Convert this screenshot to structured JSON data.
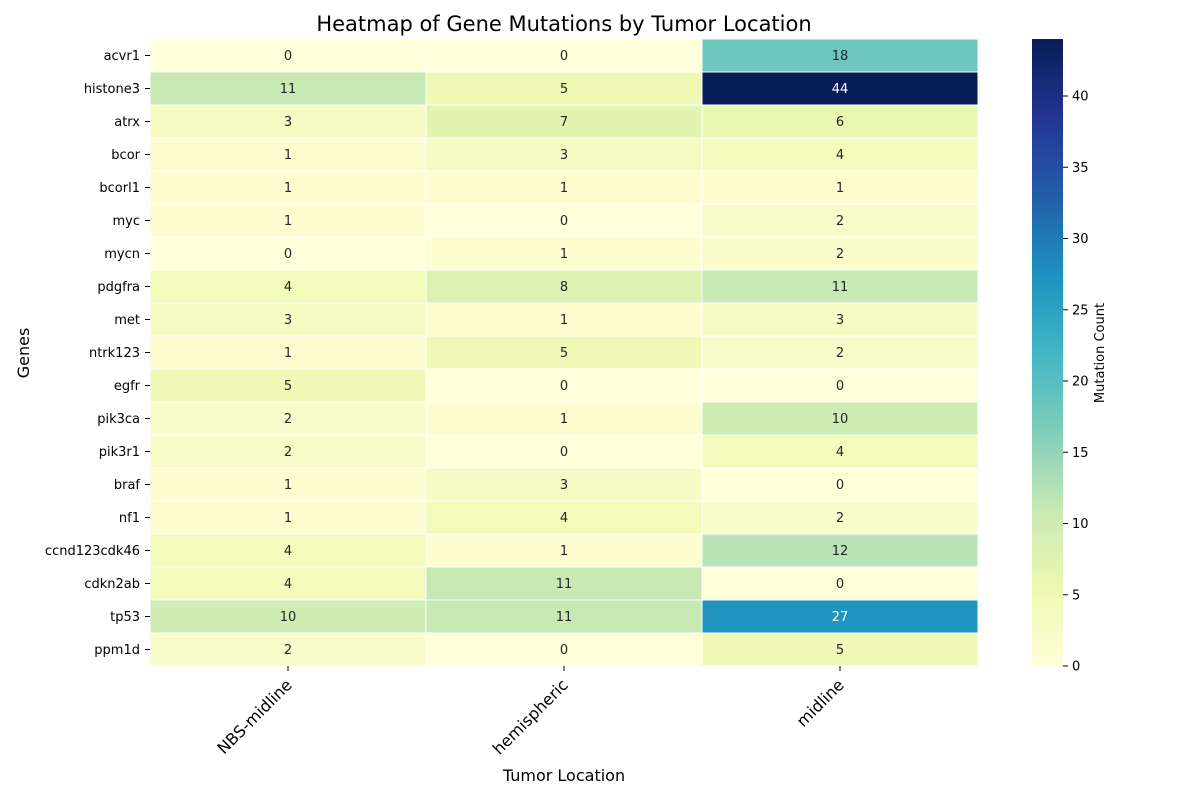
{
  "chart_data": {
    "type": "heatmap",
    "title": "Heatmap of Gene Mutations by Tumor Location",
    "xlabel": "Tumor Location",
    "ylabel": "Genes",
    "colorbar_label": "Mutation Count",
    "colormap": "YlGnBu",
    "value_range": [
      0,
      44
    ],
    "colorbar_ticks": [
      0,
      5,
      10,
      15,
      20,
      25,
      30,
      35,
      40
    ],
    "columns": [
      "NBS-midline",
      "hemispheric",
      "midline"
    ],
    "rows": [
      "acvr1",
      "histone3",
      "atrx",
      "bcor",
      "bcorl1",
      "myc",
      "mycn",
      "pdgfra",
      "met",
      "ntrk123",
      "egfr",
      "pik3ca",
      "pik3r1",
      "braf",
      "nf1",
      "ccnd123cdk46",
      "cdkn2ab",
      "tp53",
      "ppm1d"
    ],
    "values": [
      [
        0,
        0,
        18
      ],
      [
        11,
        5,
        44
      ],
      [
        3,
        7,
        6
      ],
      [
        1,
        3,
        4
      ],
      [
        1,
        1,
        1
      ],
      [
        1,
        0,
        2
      ],
      [
        0,
        1,
        2
      ],
      [
        4,
        8,
        11
      ],
      [
        3,
        1,
        3
      ],
      [
        1,
        5,
        2
      ],
      [
        5,
        0,
        0
      ],
      [
        2,
        1,
        10
      ],
      [
        2,
        0,
        4
      ],
      [
        1,
        3,
        0
      ],
      [
        1,
        4,
        2
      ],
      [
        4,
        1,
        12
      ],
      [
        4,
        11,
        0
      ],
      [
        10,
        11,
        27
      ],
      [
        2,
        0,
        5
      ]
    ]
  }
}
